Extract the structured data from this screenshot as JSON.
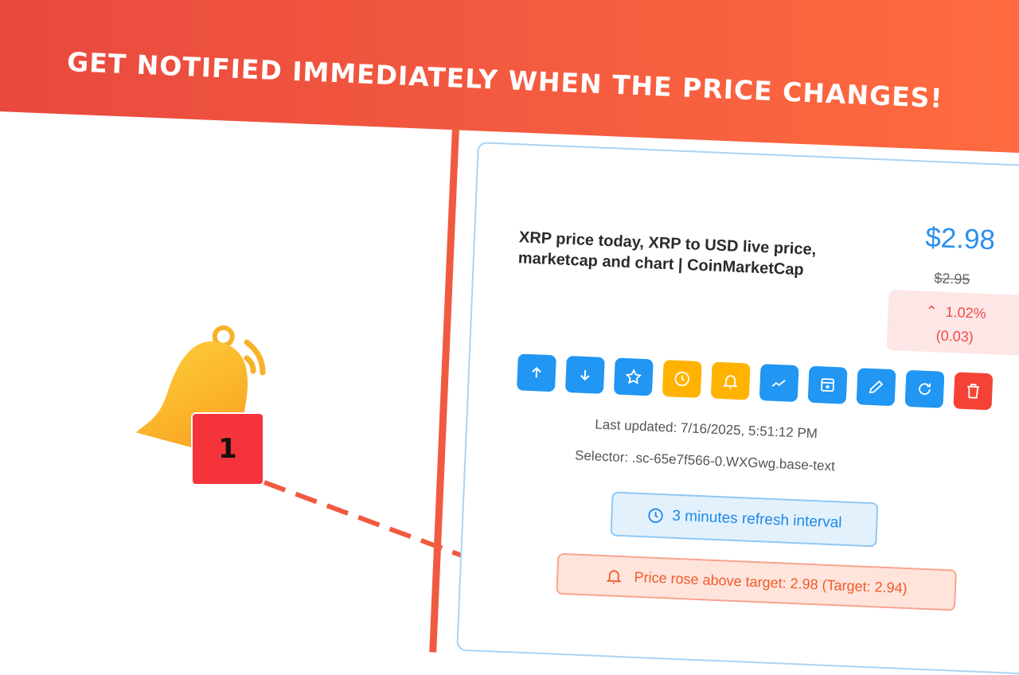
{
  "banner": {
    "headline": "Get notified immediately when the price changes!"
  },
  "badge": {
    "count": "1"
  },
  "card": {
    "title": "XRP price today, XRP to USD live price, marketcap and chart | CoinMarketCap",
    "price": "$2.98",
    "previous_price": "$2.95",
    "change_percent": "1.02%",
    "change_amount": "(0.03)",
    "actions": [
      {
        "icon": "arrow-up-icon",
        "color": "#2196f3"
      },
      {
        "icon": "arrow-down-icon",
        "color": "#2196f3"
      },
      {
        "icon": "star-icon",
        "color": "#2196f3"
      },
      {
        "icon": "clock-icon",
        "color": "#ffb300"
      },
      {
        "icon": "bell-icon",
        "color": "#ffb300"
      },
      {
        "icon": "chart-icon",
        "color": "#2196f3"
      },
      {
        "icon": "archive-icon",
        "color": "#2196f3"
      },
      {
        "icon": "pencil-icon",
        "color": "#2196f3"
      },
      {
        "icon": "refresh-icon",
        "color": "#2196f3"
      },
      {
        "icon": "trash-icon",
        "color": "#f44336"
      }
    ],
    "last_updated": "Last updated: 7/16/2025, 5:51:12 PM",
    "selector": "Selector: .sc-65e7f566-0.WXGwg.base-text",
    "refresh_interval": "3 minutes refresh interval",
    "alert": "Price rose above target: 2.98 (Target: 2.94)"
  }
}
